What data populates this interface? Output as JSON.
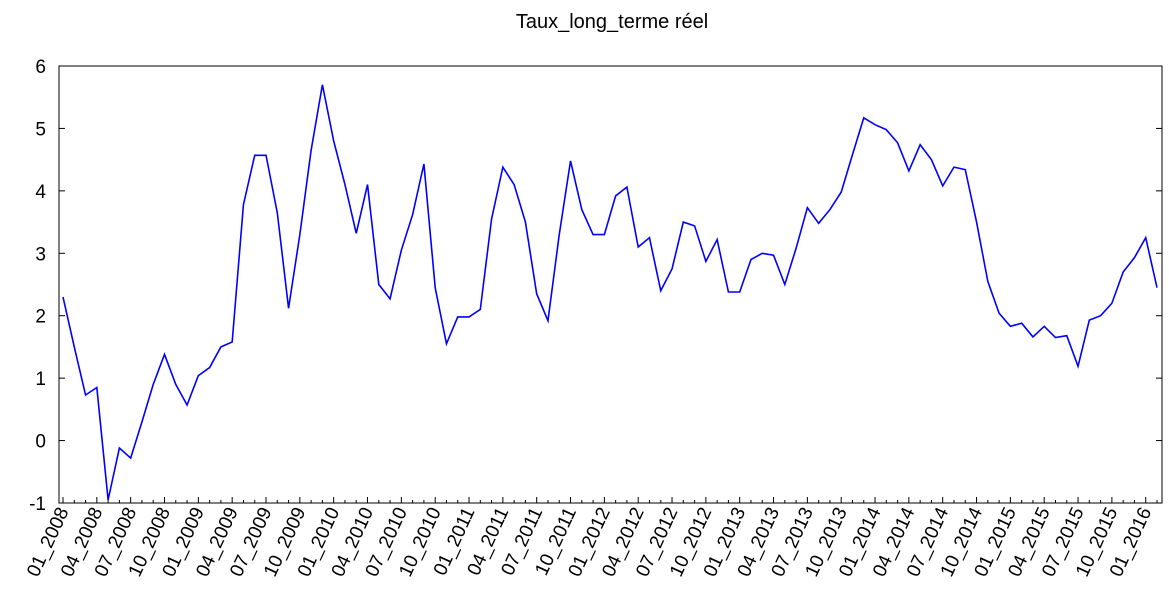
{
  "chart_data": {
    "type": "line",
    "title": "Taux_long_terme réel",
    "categories": [
      "01_2008",
      null,
      null,
      "04_2008",
      null,
      null,
      "07_2008",
      null,
      null,
      "10_2008",
      null,
      null,
      "01_2009",
      null,
      null,
      "04_2009",
      null,
      null,
      "07_2009",
      null,
      null,
      "10_2009",
      null,
      null,
      "01_2010",
      null,
      null,
      "04_2010",
      null,
      null,
      "07_2010",
      null,
      null,
      "10_2010",
      null,
      null,
      "01_2011",
      null,
      null,
      "04_2011",
      null,
      null,
      "07_2011",
      null,
      null,
      "10_2011",
      null,
      null,
      "01_2012",
      null,
      null,
      "04_2012",
      null,
      null,
      "07_2012",
      null,
      null,
      "10_2012",
      null,
      null,
      "01_2013",
      null,
      null,
      "04_2013",
      null,
      null,
      "07_2013",
      null,
      null,
      "10_2013",
      null,
      null,
      "01_2014",
      null,
      null,
      "04_2014",
      null,
      null,
      "07_2014",
      null,
      null,
      "10_2014",
      null,
      null,
      "01_2015",
      null,
      null,
      "04_2015",
      null,
      null,
      "07_2015",
      null,
      null,
      "10_2015",
      null,
      null,
      "01_2016",
      null
    ],
    "values": [
      2.3,
      1.5,
      0.73,
      0.85,
      -0.95,
      -0.12,
      -0.28,
      0.3,
      0.9,
      1.38,
      0.9,
      0.57,
      1.04,
      1.17,
      1.5,
      1.58,
      3.78,
      4.57,
      4.57,
      3.65,
      2.12,
      3.3,
      4.65,
      5.7,
      4.8,
      4.1,
      3.32,
      4.1,
      2.5,
      2.27,
      3.05,
      3.62,
      4.43,
      2.45,
      1.55,
      1.98,
      1.98,
      2.1,
      3.55,
      4.38,
      4.1,
      3.5,
      2.35,
      1.92,
      3.3,
      4.48,
      3.7,
      3.3,
      3.3,
      3.92,
      4.06,
      3.1,
      3.25,
      2.4,
      2.75,
      3.5,
      3.44,
      2.87,
      3.22,
      2.38,
      2.38,
      2.9,
      3.0,
      2.97,
      2.5,
      3.08,
      3.73,
      3.48,
      3.7,
      3.98,
      4.58,
      5.17,
      5.06,
      4.98,
      4.77,
      4.32,
      4.74,
      4.5,
      4.08,
      4.38,
      4.34,
      3.5,
      2.55,
      2.04,
      1.83,
      1.88,
      1.66,
      1.83,
      1.65,
      1.68,
      1.19,
      1.93,
      2.0,
      2.2,
      2.7,
      2.93,
      3.25,
      2.45
    ],
    "color": "#0000ff",
    "ylim": [
      -1,
      6
    ],
    "yticks": [
      -1,
      0,
      1,
      2,
      3,
      4,
      5,
      6
    ]
  }
}
